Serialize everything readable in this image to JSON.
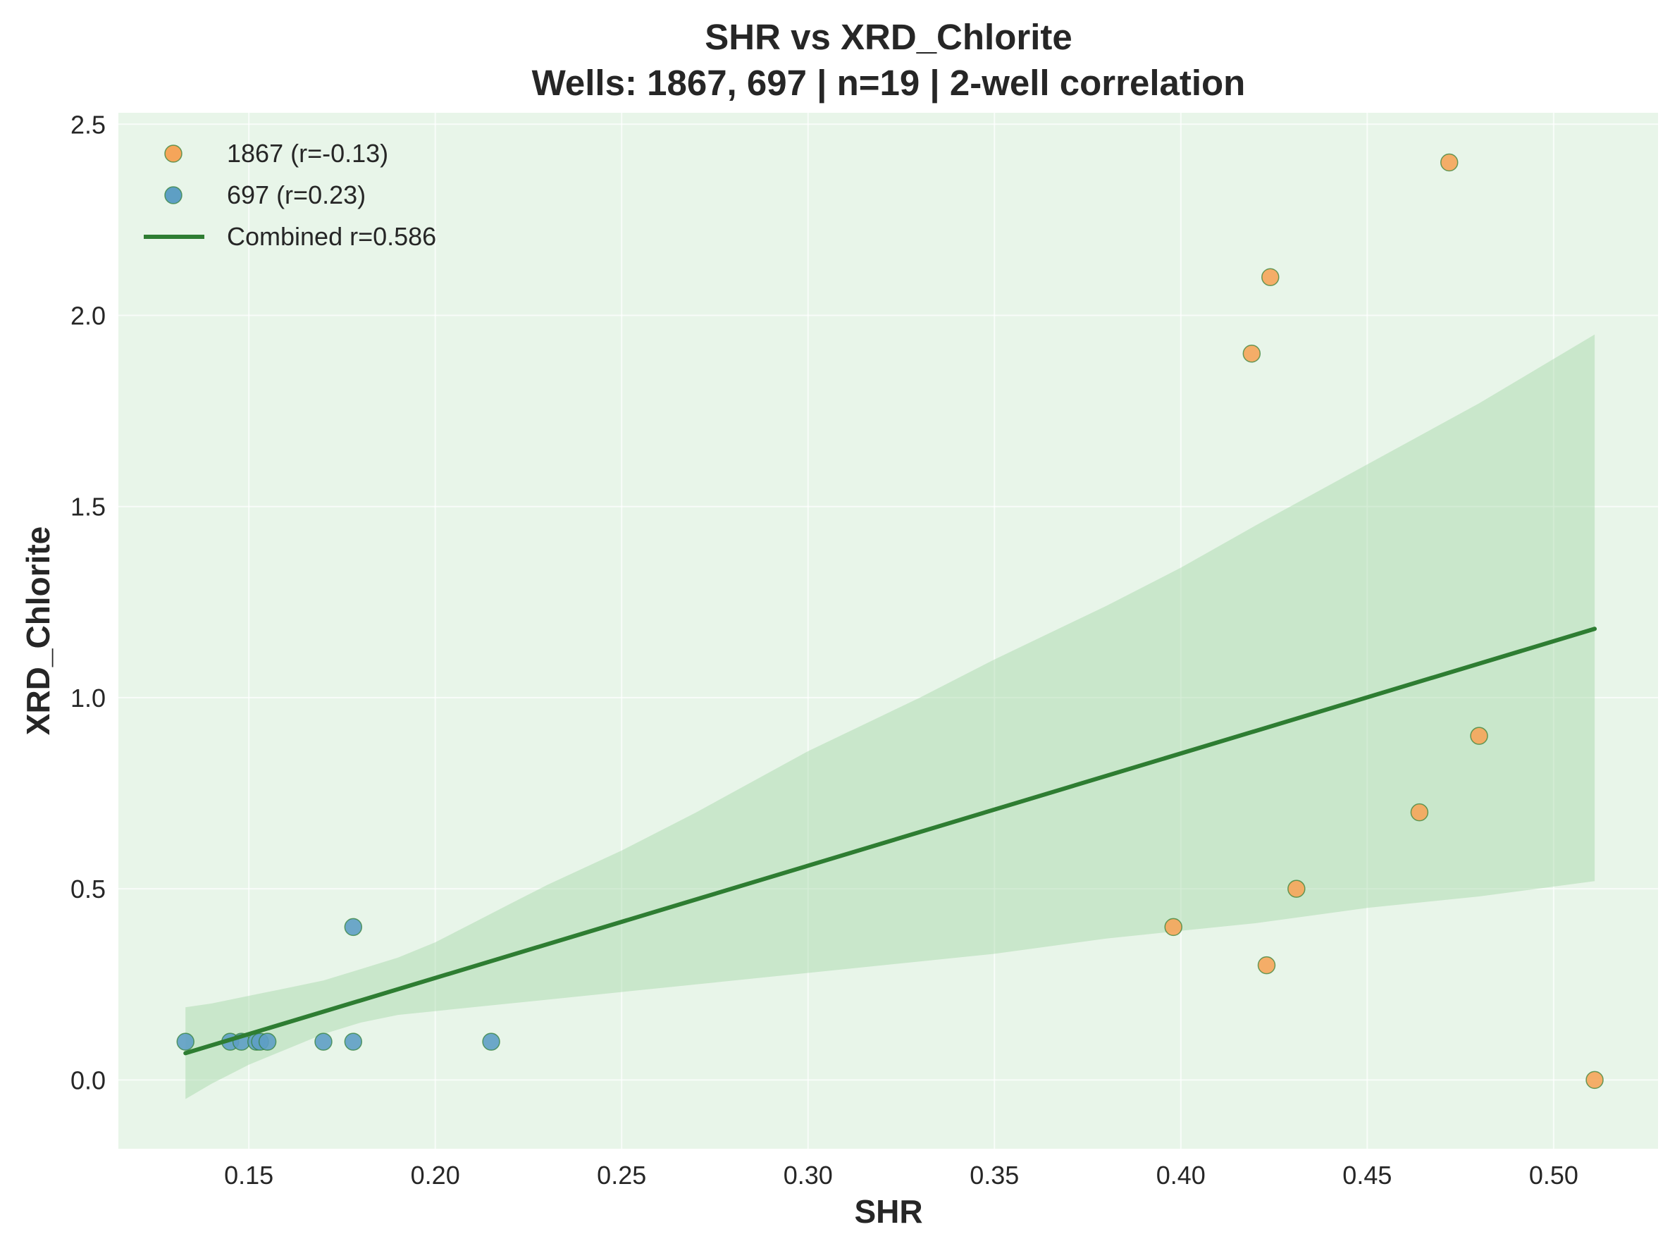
{
  "chart_data": {
    "type": "scatter",
    "title": "SHR vs XRD_Chlorite",
    "subtitle": "Wells: 1867, 697 | n=19 | 2-well correlation",
    "xlabel": "SHR",
    "ylabel": "XRD_Chlorite",
    "xlim": [
      0.115,
      0.528
    ],
    "ylim": [
      -0.18,
      2.53
    ],
    "x_ticks": [
      0.15,
      0.2,
      0.25,
      0.3,
      0.35,
      0.4,
      0.45,
      0.5
    ],
    "x_tick_labels": [
      "0.15",
      "0.20",
      "0.25",
      "0.30",
      "0.35",
      "0.40",
      "0.45",
      "0.50"
    ],
    "y_ticks": [
      0.0,
      0.5,
      1.0,
      1.5,
      2.0,
      2.5
    ],
    "y_tick_labels": [
      "0.0",
      "0.5",
      "1.0",
      "1.5",
      "2.0",
      "2.5"
    ],
    "grid": true,
    "legend_position": "top-left",
    "background_color": "#e8f5e9",
    "series": [
      {
        "name": "1867 (r=-0.13)",
        "kind": "scatter",
        "color": "#f5a55a",
        "x": [
          0.472,
          0.424,
          0.419,
          0.48,
          0.464,
          0.431,
          0.398,
          0.423,
          0.511
        ],
        "y": [
          2.4,
          2.1,
          1.9,
          0.9,
          0.7,
          0.5,
          0.4,
          0.3,
          0.0
        ]
      },
      {
        "name": "697 (r=0.23)",
        "kind": "scatter",
        "color": "#5e9fc4",
        "x": [
          0.133,
          0.145,
          0.148,
          0.152,
          0.153,
          0.155,
          0.17,
          0.178,
          0.178,
          0.215
        ],
        "y": [
          0.1,
          0.1,
          0.1,
          0.1,
          0.1,
          0.1,
          0.1,
          0.1,
          0.4,
          0.1
        ]
      },
      {
        "name": "Combined r=0.586",
        "kind": "line",
        "color": "#2e7d32",
        "x": [
          0.133,
          0.511
        ],
        "y": [
          0.07,
          1.18
        ]
      }
    ],
    "confidence_band": {
      "color": "#a5d6a7",
      "x": [
        0.133,
        0.14,
        0.15,
        0.16,
        0.17,
        0.18,
        0.19,
        0.2,
        0.21,
        0.22,
        0.23,
        0.25,
        0.27,
        0.3,
        0.33,
        0.35,
        0.38,
        0.4,
        0.42,
        0.45,
        0.48,
        0.511
      ],
      "upper": [
        0.19,
        0.2,
        0.22,
        0.24,
        0.26,
        0.29,
        0.32,
        0.36,
        0.41,
        0.46,
        0.51,
        0.6,
        0.7,
        0.86,
        1.0,
        1.1,
        1.24,
        1.34,
        1.45,
        1.61,
        1.77,
        1.95
      ],
      "lower": [
        -0.05,
        -0.01,
        0.04,
        0.08,
        0.12,
        0.15,
        0.17,
        0.18,
        0.19,
        0.2,
        0.21,
        0.23,
        0.25,
        0.28,
        0.31,
        0.33,
        0.37,
        0.39,
        0.41,
        0.45,
        0.48,
        0.52
      ]
    }
  }
}
